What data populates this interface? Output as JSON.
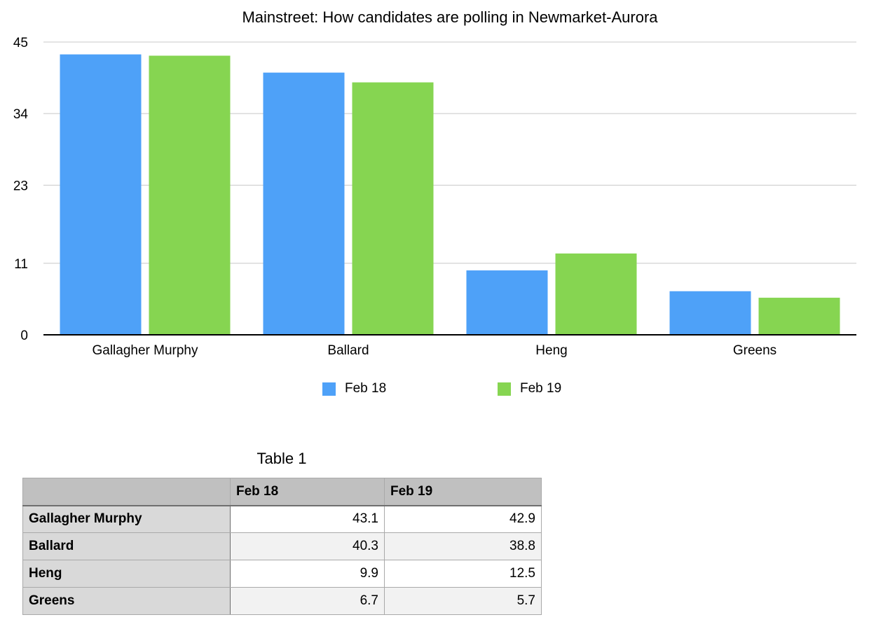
{
  "chart_data": {
    "type": "bar",
    "title": "Mainstreet: How candidates are polling in Newmarket-Aurora",
    "categories": [
      "Gallagher Murphy",
      "Ballard",
      "Heng",
      "Greens"
    ],
    "series": [
      {
        "name": "Feb 18",
        "values": [
          43.1,
          40.3,
          9.9,
          6.7
        ],
        "color": "#4ea1f8"
      },
      {
        "name": "Feb 19",
        "values": [
          42.9,
          38.8,
          12.5,
          5.7
        ],
        "color": "#86d551"
      }
    ],
    "yticks": [
      "0",
      "11",
      "23",
      "34",
      "45"
    ],
    "ylim": [
      0,
      45
    ],
    "xlabel": "",
    "ylabel": "",
    "grid": true,
    "legend": "bottom-center"
  },
  "table": {
    "title": "Table 1",
    "headers": [
      "",
      "Feb 18",
      "Feb 19"
    ],
    "rows": [
      {
        "label": "Gallagher Murphy",
        "feb18": "43.1",
        "feb19": "42.9"
      },
      {
        "label": "Ballard",
        "feb18": "40.3",
        "feb19": "38.8"
      },
      {
        "label": "Heng",
        "feb18": "9.9",
        "feb19": "12.5"
      },
      {
        "label": "Greens",
        "feb18": "6.7",
        "feb19": "5.7"
      }
    ]
  }
}
